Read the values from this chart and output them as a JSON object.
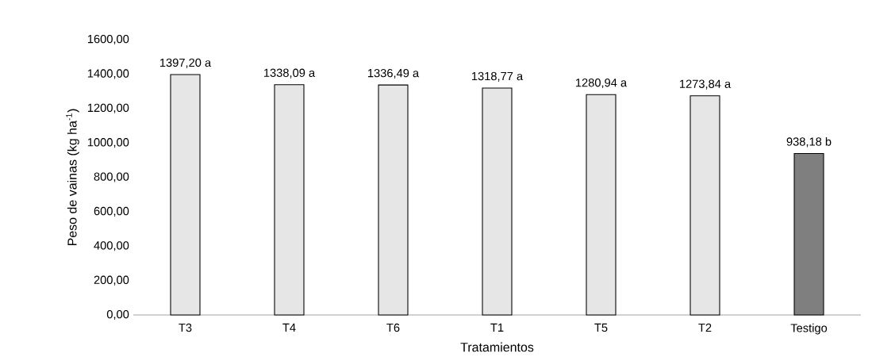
{
  "chart_data": {
    "type": "bar",
    "xlabel": "Tratamientos",
    "ylabel": "Peso de vainas (kg ha$^{-1}$)",
    "categories": [
      "T3",
      "T4",
      "T6",
      "T1",
      "T5",
      "T2",
      "Testigo"
    ],
    "values": [
      1397.2,
      1338.09,
      1336.49,
      1318.77,
      1280.94,
      1273.84,
      938.18
    ],
    "value_labels": [
      "1397,20 a",
      "1338,09 a",
      "1336,49 a",
      "1318,77 a",
      "1280,94 a",
      "1273,84 a",
      "938,18 b"
    ],
    "colors": [
      "#e7e6e6",
      "#e7e6e6",
      "#e7e6e6",
      "#e7e6e6",
      "#e7e6e6",
      "#e7e6e6",
      "#7f7f7f"
    ],
    "ylim": [
      0,
      1600
    ],
    "yticks": [
      {
        "value": 0,
        "label": "0,00"
      },
      {
        "value": 200,
        "label": "200,00"
      },
      {
        "value": 400,
        "label": "400,00"
      },
      {
        "value": 600,
        "label": "600,00"
      },
      {
        "value": 800,
        "label": "800,00"
      },
      {
        "value": 1000,
        "label": "1000,00"
      },
      {
        "value": 1200,
        "label": "1200,00"
      },
      {
        "value": 1400,
        "label": "1400,00"
      },
      {
        "value": 1600,
        "label": "1600,00"
      }
    ]
  }
}
